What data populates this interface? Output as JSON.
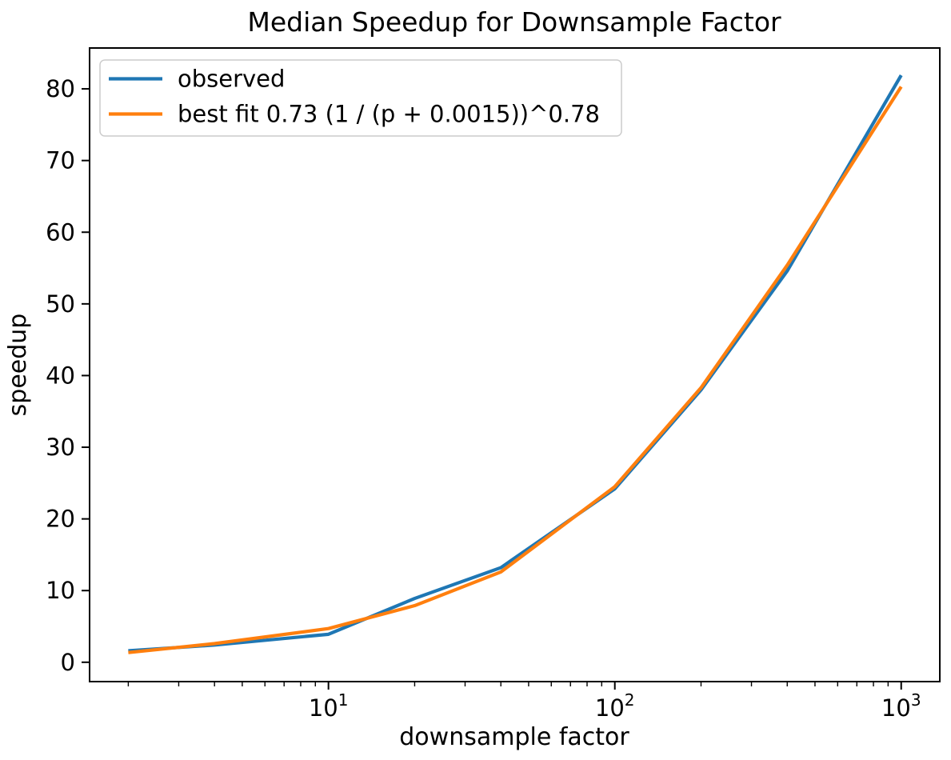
{
  "chart_data": {
    "type": "line",
    "title": "Median Speedup for Downsample Factor",
    "xlabel": "downsample factor",
    "ylabel": "speedup",
    "x_scale": "log",
    "y_scale": "linear",
    "grid": false,
    "legend_position": "upper left",
    "x": [
      2,
      4,
      10,
      20,
      40,
      100,
      200,
      400,
      1000
    ],
    "series": [
      {
        "name": "observed",
        "color": "#1f77b4",
        "values": [
          1.6,
          2.4,
          3.9,
          8.9,
          13.2,
          24.2,
          38.0,
          54.6,
          81.9
        ]
      },
      {
        "name": "best fit 0.73 (1 / (p + 0.0015))^0.78",
        "color": "#ff7f0e",
        "values": [
          1.35,
          2.6,
          4.7,
          7.9,
          12.6,
          24.5,
          38.3,
          55.4,
          80.3
        ]
      }
    ],
    "x_major_ticks": [
      10,
      100,
      1000
    ],
    "x_tick_labels": [
      "10^1",
      "10^2",
      "10^3"
    ],
    "y_major_ticks": [
      0,
      10,
      20,
      30,
      40,
      50,
      60,
      70,
      80
    ],
    "y_tick_labels": [
      "0",
      "10",
      "20",
      "30",
      "40",
      "50",
      "60",
      "70",
      "80"
    ],
    "xlim": [
      1.465,
      1364
    ],
    "ylim": [
      -2.7,
      85.7
    ],
    "colors": {
      "spine": "#000000",
      "tick": "#000000",
      "legend_border": "#cccccc",
      "legend_background": "#ffffff",
      "figure_background": "#ffffff"
    }
  }
}
